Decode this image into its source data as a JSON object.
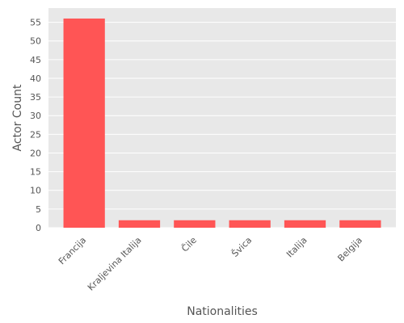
{
  "chart_data": {
    "type": "bar",
    "title": "",
    "xlabel": "Nationalities",
    "ylabel": "Actor Count",
    "categories": [
      "Francija",
      "Kraljevina Italija",
      "Čile",
      "Švica",
      "Italija",
      "Belgija"
    ],
    "values": [
      56,
      2,
      2,
      2,
      2,
      2
    ],
    "ylim": [
      0,
      58.8
    ],
    "yticks": [
      0,
      5,
      10,
      15,
      20,
      25,
      30,
      35,
      40,
      45,
      50,
      55
    ],
    "grid": true,
    "legend": "none",
    "colors": {
      "bar": "#ff5555",
      "panel_background": "#e8e8e8",
      "grid": "#ffffff",
      "text": "#555555"
    }
  }
}
